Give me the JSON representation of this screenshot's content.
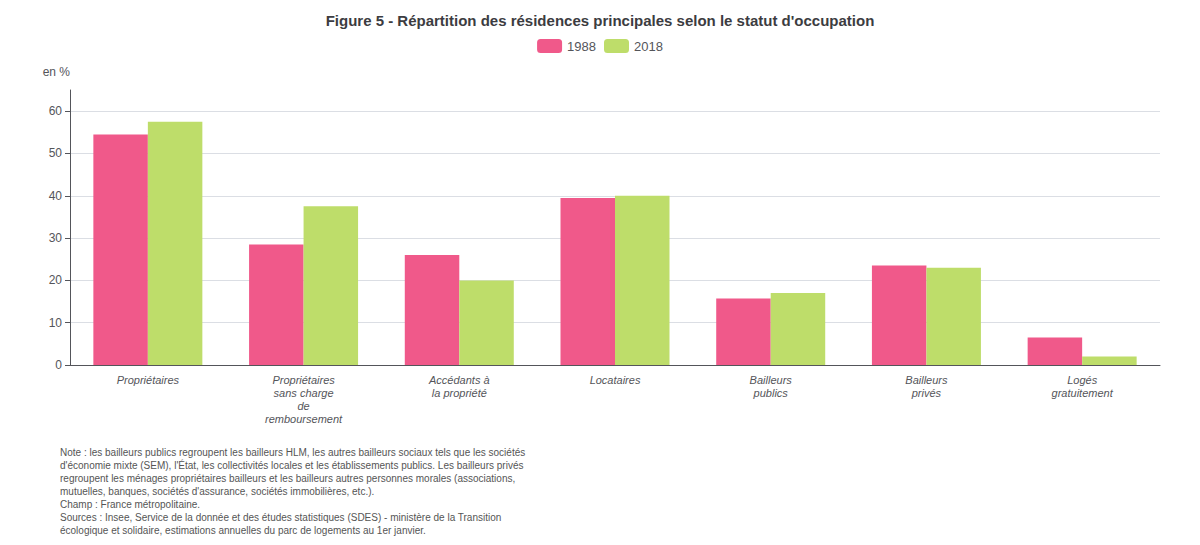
{
  "chart_data": {
    "type": "bar",
    "title": "Figure 5 - Répartition des résidences principales selon le statut d'occupation",
    "ylabel": "en %",
    "categories": [
      "Propriétaires",
      "Propriétaires\nsans charge\nde\nremboursement",
      "Accédants à\nla propriété",
      "Locataires",
      "Bailleurs\npublics",
      "Bailleurs\nprivés",
      "Logés\ngratuitement"
    ],
    "series": [
      {
        "name": "1988",
        "color": "#F0598A",
        "values": [
          54.5,
          28.5,
          26.0,
          39.5,
          15.7,
          23.5,
          6.5
        ]
      },
      {
        "name": "2018",
        "color": "#BEDD6A",
        "values": [
          57.5,
          37.5,
          20.0,
          40.0,
          17.0,
          23.0,
          2.0
        ]
      }
    ],
    "ylim": [
      0,
      65
    ],
    "yticks": [
      0,
      10,
      20,
      30,
      40,
      50,
      60
    ],
    "grid": true,
    "legend": "top",
    "annotations": [
      "Note : les bailleurs publics regroupent les bailleurs HLM, les autres bailleurs sociaux tels que les sociétés\nd'économie mixte (SEM), l'État, les collectivités locales et les établissements publics. Les bailleurs privés\nregroupent les ménages propriétaires bailleurs et les bailleurs autres personnes morales (associations,\nmutuelles, banques, sociétés d'assurance, sociétés immobilières, etc.).\nChamp : France métropolitaine.\nSources : Insee, Service de la donnée et des études statistiques (SDES) - ministère de la Transition\nécologique et solidaire, estimations annuelles du parc de logements au 1er janvier."
    ]
  }
}
